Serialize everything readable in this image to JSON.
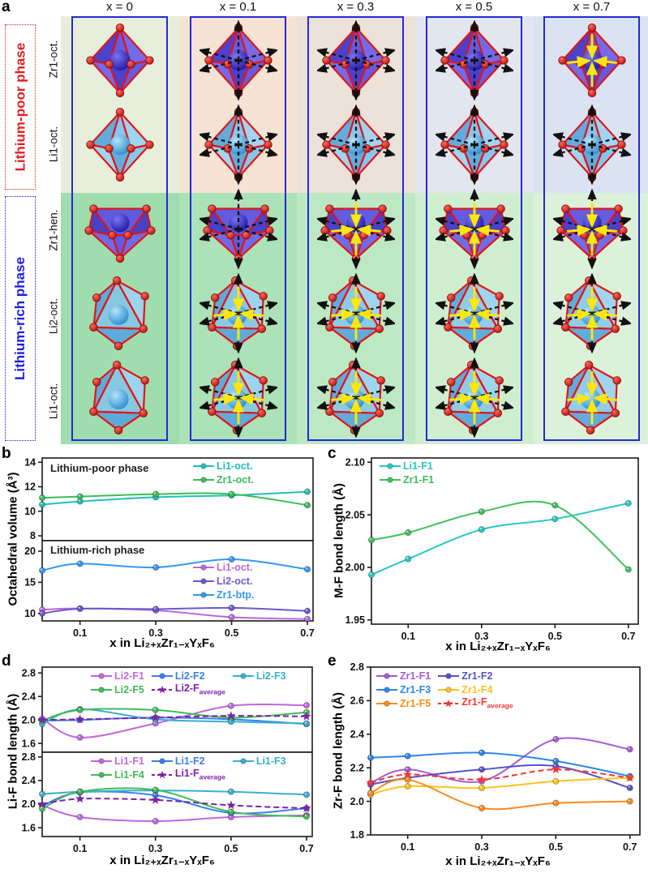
{
  "panels": {
    "a": "a",
    "b": "b",
    "c": "c",
    "d": "d",
    "e": "e"
  },
  "panel_a": {
    "columns": [
      "x = 0",
      "x = 0.1",
      "x = 0.3",
      "x = 0.5",
      "x = 0.7"
    ],
    "phases": [
      {
        "label": "Lithium-poor phase",
        "color": "#e81d1d"
      },
      {
        "label": "Lithium-rich phase",
        "color": "#1d1de8"
      }
    ],
    "rows": [
      {
        "label": "Zr1-oct.",
        "shape": "oct",
        "metal": "zr",
        "phase": "poor",
        "arrows": [
          "none",
          "out",
          "out",
          "out",
          "in"
        ]
      },
      {
        "label": "Li1-oct.",
        "shape": "oct",
        "metal": "li",
        "phase": "poor",
        "arrows": [
          "none",
          "out",
          "out",
          "out",
          "out"
        ]
      },
      {
        "label": "Zr1-hen.",
        "shape": "hen",
        "metal": "zr",
        "phase": "rich",
        "arrows": [
          "none",
          "out",
          "both",
          "both",
          "both"
        ]
      },
      {
        "label": "Li2-oct.",
        "shape": "toct",
        "metal": "li",
        "phase": "rich",
        "arrows": [
          "none",
          "both",
          "both",
          "both",
          "both"
        ]
      },
      {
        "label": "Li1-oct.",
        "shape": "toct",
        "metal": "li",
        "phase": "rich",
        "arrows": [
          "none",
          "both",
          "both",
          "both",
          "in"
        ]
      }
    ],
    "poor_tints": [
      "#e7efdc",
      "#f7e3d4",
      "#ece2da",
      "#e2e6ee",
      "#dbe3f3"
    ],
    "rich_tints": [
      "#9fdcae",
      "#abe2b7",
      "#bde8c4",
      "#cfeecf",
      "#dcf1da"
    ],
    "box_border_color": "#2629d6",
    "atom_colors": {
      "F": "#e32020",
      "Zr": "#3a30d0",
      "Li": "#4fb0e8"
    }
  },
  "chart_data": [
    {
      "panel": "b",
      "type": "line",
      "ylabel": "Octahedral volume (Å³)",
      "xlabel": "x in Li₂₊ₓZr₁₋ₓYₓF₆",
      "x": [
        0,
        0.1,
        0.3,
        0.5,
        0.7
      ],
      "xlim": [
        0,
        0.715
      ],
      "xticks": [
        0.1,
        0.3,
        0.5,
        0.7
      ],
      "xtick_labels": [
        "0.1",
        "0.3",
        "0.5",
        "0.7"
      ],
      "subplots": [
        {
          "annotation": "Lithium-poor phase",
          "ylim": [
            7.6,
            14.35
          ],
          "yticks": [
            8,
            10,
            12,
            14
          ],
          "ytick_labels": [
            "8",
            "10",
            "12",
            "14"
          ],
          "series": [
            {
              "name": "Li1-oct.",
              "color": "#1fc0b7",
              "values": [
                10.55,
                10.8,
                11.15,
                11.3,
                11.6
              ]
            },
            {
              "name": "Zr1-oct.",
              "color": "#3cbd59",
              "values": [
                11.1,
                11.2,
                11.4,
                11.4,
                10.5
              ]
            }
          ]
        },
        {
          "annotation": "Lithium-rich phase",
          "ylim": [
            8.8,
            21.7
          ],
          "yticks": [
            10,
            15,
            20
          ],
          "ytick_labels": [
            "10",
            "15",
            "20"
          ],
          "series": [
            {
              "name": "Li1-oct.",
              "color": "#bd68d9",
              "values": [
                10.6,
                10.8,
                10.5,
                9.4,
                9.1
              ]
            },
            {
              "name": "Li2-oct.",
              "color": "#6a5acd",
              "values": [
                10.0,
                10.75,
                10.7,
                10.9,
                10.4
              ]
            },
            {
              "name": "Zr1-btp.",
              "color": "#3398f2",
              "values": [
                16.9,
                18.0,
                17.4,
                18.7,
                17.1
              ]
            }
          ]
        }
      ]
    },
    {
      "panel": "c",
      "type": "line",
      "ylabel": "M-F bond length (Å)",
      "xlabel": "x in Li₂₊ₓZr₁₋ₓYₓF₆",
      "x": [
        0,
        0.1,
        0.3,
        0.5,
        0.7
      ],
      "xlim": [
        0,
        0.727
      ],
      "xticks": [
        0.1,
        0.3,
        0.5,
        0.7
      ],
      "xtick_labels": [
        "0.1",
        "0.3",
        "0.5",
        "0.7"
      ],
      "subplots": [
        {
          "ylim": [
            1.946,
            2.104
          ],
          "yticks": [
            1.95,
            2.0,
            2.05,
            2.1
          ],
          "ytick_labels": [
            "1.95",
            "2.00",
            "2.05",
            "2.10"
          ],
          "series": [
            {
              "name": "Li1-F1",
              "color": "#27c8c1",
              "values": [
                1.993,
                2.008,
                2.036,
                2.046,
                2.061
              ]
            },
            {
              "name": "Zr1-F1",
              "color": "#3fc25c",
              "values": [
                2.026,
                2.033,
                2.053,
                2.059,
                1.998
              ]
            }
          ]
        }
      ]
    },
    {
      "panel": "d",
      "type": "line",
      "ylabel": "Li-F bond length (Å)",
      "xlabel": "x in Li₂₊ₓZr₁₋ₓYₓF₆",
      "x": [
        0,
        0.1,
        0.3,
        0.5,
        0.7
      ],
      "xlim": [
        0,
        0.715
      ],
      "xticks": [
        0.1,
        0.3,
        0.5,
        0.7
      ],
      "xtick_labels": [
        "0.1",
        "0.3",
        "0.5",
        "0.7"
      ],
      "subplots": [
        {
          "ylim": [
            1.45,
            2.9
          ],
          "yticks": [
            1.6,
            2.0,
            2.4,
            2.8
          ],
          "ytick_labels": [
            "1.6",
            "2.0",
            "2.4",
            "2.8"
          ],
          "series": [
            {
              "name": "Li2-F1",
              "color": "#c168dd",
              "values": [
                2.02,
                1.7,
                1.94,
                2.24,
                2.25
              ]
            },
            {
              "name": "Li2-F2",
              "color": "#3d7ef0",
              "values": [
                1.99,
                2.0,
                2.04,
                2.01,
                1.93
              ]
            },
            {
              "name": "Li2-F3",
              "color": "#39b0cf",
              "values": [
                1.93,
                2.18,
                2.01,
                1.97,
                1.94
              ]
            },
            {
              "name": "Li2-F5",
              "color": "#43bb57",
              "values": [
                1.99,
                2.17,
                2.17,
                2.04,
                2.13
              ]
            },
            {
              "name": "Li2-F",
              "name_sub": "average",
              "color": "#7d22a8",
              "dashed": true,
              "marker": "star",
              "values": [
                2.0,
                2.01,
                2.04,
                2.07,
                2.06
              ]
            }
          ]
        },
        {
          "ylim": [
            1.45,
            2.88
          ],
          "yticks": [
            1.6,
            2.0,
            2.4,
            2.8
          ],
          "ytick_labels": [
            "1.6",
            "2.0",
            "2.4",
            "2.8"
          ],
          "series": [
            {
              "name": "Li1-F1",
              "color": "#c168dd",
              "values": [
                1.98,
                1.78,
                1.71,
                1.78,
                1.81
              ]
            },
            {
              "name": "Li1-F2",
              "color": "#3d7ef0",
              "values": [
                1.97,
                2.2,
                2.15,
                1.85,
                1.93
              ]
            },
            {
              "name": "Li1-F3",
              "color": "#39b0cf",
              "values": [
                2.17,
                2.21,
                2.23,
                2.21,
                2.16
              ]
            },
            {
              "name": "Li1-F4",
              "color": "#43bb57",
              "values": [
                1.92,
                2.21,
                2.24,
                1.87,
                1.79
              ]
            },
            {
              "name": "Li1-F",
              "name_sub": "average",
              "color": "#7d22a8",
              "dashed": true,
              "marker": "star",
              "values": [
                2.0,
                2.09,
                2.07,
                1.98,
                1.93
              ]
            }
          ]
        }
      ]
    },
    {
      "panel": "e",
      "type": "line",
      "ylabel": "Zr-F bond length (Å)",
      "xlabel": "x in Li₂₊ₓZr₁₋ₓYₓF₆",
      "x": [
        0,
        0.1,
        0.3,
        0.5,
        0.7
      ],
      "xlim": [
        0,
        0.727
      ],
      "xticks": [
        0.1,
        0.3,
        0.5,
        0.7
      ],
      "xtick_labels": [
        "0.1",
        "0.3",
        "0.5",
        "0.7"
      ],
      "subplots": [
        {
          "ylim": [
            1.8,
            2.8
          ],
          "yticks": [
            1.8,
            2.0,
            2.2,
            2.4,
            2.6,
            2.8
          ],
          "ytick_labels": [
            "1.8",
            "2.0",
            "2.2",
            "2.4",
            "2.6",
            "2.8"
          ],
          "series": [
            {
              "name": "Zr1-F1",
              "color": "#a55cd6",
              "values": [
                2.11,
                2.19,
                2.12,
                2.37,
                2.31
              ]
            },
            {
              "name": "Zr1-F2",
              "color": "#5552c8",
              "values": [
                2.1,
                2.14,
                2.19,
                2.21,
                2.08
              ]
            },
            {
              "name": "Zr1-F3",
              "color": "#2e86e8",
              "values": [
                2.26,
                2.27,
                2.29,
                2.24,
                2.15
              ]
            },
            {
              "name": "Zr1-F4",
              "color": "#fdc21f",
              "values": [
                2.04,
                2.09,
                2.08,
                2.12,
                2.14
              ]
            },
            {
              "name": "Zr1-F5",
              "color": "#fd8c1f",
              "values": [
                2.05,
                2.13,
                1.96,
                1.99,
                2.0
              ]
            },
            {
              "name": "Zr1-F",
              "name_sub": "average",
              "color": "#f53535",
              "dashed": true,
              "marker": "star",
              "values": [
                2.11,
                2.16,
                2.13,
                2.19,
                2.14
              ]
            }
          ]
        }
      ]
    }
  ]
}
